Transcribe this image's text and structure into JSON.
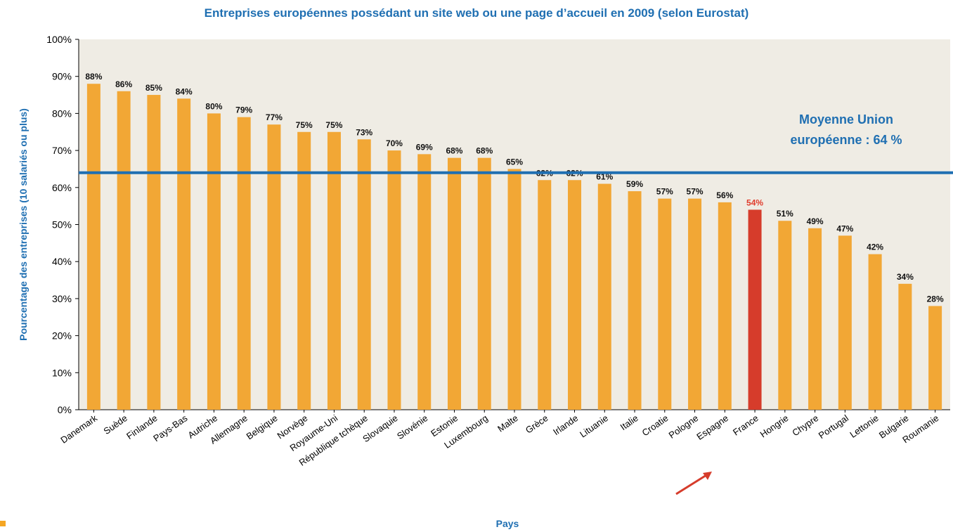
{
  "chart_data": {
    "type": "bar",
    "title": "Entreprises européennes possédant un site web ou une page d’accueil en 2009 (selon Eurostat)",
    "xlabel": "Pays",
    "ylabel": "Pourcentage des entreprises (10 salariés ou plus)",
    "ylim": [
      0,
      100
    ],
    "yticks": [
      0,
      10,
      20,
      30,
      40,
      50,
      60,
      70,
      80,
      90,
      100
    ],
    "ytick_labels": [
      "0%",
      "10%",
      "20%",
      "30%",
      "40%",
      "50%",
      "60%",
      "70%",
      "80%",
      "90%",
      "100%"
    ],
    "grid": false,
    "categories": [
      "Danemark",
      "Suède",
      "Finlande",
      "Pays-Bas",
      "Autriche",
      "Allemagne",
      "Belgique",
      "Norvège",
      "Royaume-Uni",
      "République tchèque",
      "Slovaquie",
      "Slovénie",
      "Estonie",
      "Luxembourg",
      "Malte",
      "Grèce",
      "Irlande",
      "Lituanie",
      "Italie",
      "Croatie",
      "Pologne",
      "Espagne",
      "France",
      "Hongrie",
      "Chypre",
      "Portugal",
      "Lettonie",
      "Bulgarie",
      "Roumanie"
    ],
    "values": [
      88,
      86,
      85,
      84,
      80,
      79,
      77,
      75,
      75,
      73,
      70,
      69,
      68,
      68,
      65,
      62,
      62,
      61,
      59,
      57,
      57,
      56,
      54,
      51,
      49,
      47,
      42,
      34,
      28
    ],
    "value_labels": [
      "88%",
      "86%",
      "85%",
      "84%",
      "80%",
      "79%",
      "77%",
      "75%",
      "75%",
      "73%",
      "70%",
      "69%",
      "68%",
      "68%",
      "65%",
      "62%",
      "62%",
      "61%",
      "59%",
      "57%",
      "57%",
      "56%",
      "54%",
      "51%",
      "49%",
      "47%",
      "42%",
      "34%",
      "28%"
    ],
    "highlight": "France",
    "reference_line": {
      "value": 64,
      "label_lines": [
        "Moyenne Union",
        "européenne : 64 %"
      ]
    },
    "colors": {
      "bar": "#f2a735",
      "highlight_bar": "#d63c2b",
      "highlight_label": "#e03c2c",
      "reference_line": "#1f6fb2",
      "title": "#1f6fb2",
      "plot_background": "#efece4",
      "arrow": "#d63c2b"
    }
  }
}
